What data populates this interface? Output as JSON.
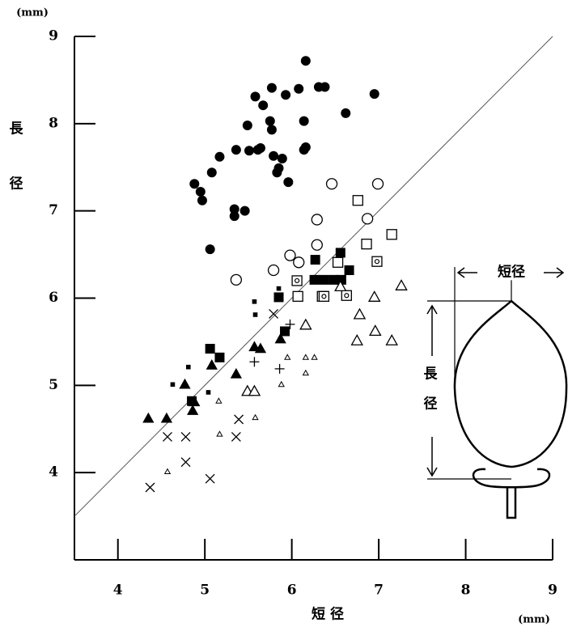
{
  "chart_data": {
    "type": "scatter",
    "y_unit": "(mm)",
    "x_unit": "(mm)",
    "ylabel": [
      "長",
      "径"
    ],
    "xlabel": "短 径",
    "xlim": [
      3.5,
      9
    ],
    "ylim": [
      3,
      9
    ],
    "xticks": [
      4,
      5,
      6,
      7,
      8,
      9
    ],
    "yticks": [
      4,
      5,
      6,
      7,
      8,
      9
    ],
    "identity_line": true,
    "inset": {
      "width_label": "短径",
      "length_label": [
        "長",
        "径"
      ]
    },
    "series": [
      {
        "marker": "filled-circle",
        "color": "#000000",
        "x": [
          4.88,
          4.95,
          4.97,
          5.08,
          5.17,
          5.36,
          5.51,
          5.61,
          5.49,
          5.58,
          5.67,
          5.77,
          5.64,
          5.75,
          5.77,
          5.85,
          5.79,
          5.83,
          5.89,
          5.96,
          5.93,
          6.08,
          6.16,
          6.14,
          6.14,
          6.16,
          6.38,
          6.31,
          6.95,
          6.62,
          5.34,
          5.34,
          5.46,
          5.06
        ],
        "y": [
          7.31,
          7.22,
          7.12,
          7.44,
          7.62,
          7.7,
          7.69,
          7.7,
          7.98,
          8.31,
          8.21,
          8.41,
          7.72,
          8.03,
          7.93,
          7.49,
          7.63,
          7.44,
          7.6,
          7.33,
          8.33,
          8.4,
          8.72,
          8.03,
          7.7,
          7.73,
          8.42,
          8.42,
          8.34,
          8.12,
          7.02,
          6.94,
          7.0,
          6.56
        ]
      },
      {
        "marker": "open-circle",
        "color": "#000000",
        "x": [
          5.36,
          5.79,
          5.98,
          6.08,
          6.29,
          6.29,
          6.46,
          6.87,
          6.99
        ],
        "y": [
          6.21,
          6.32,
          6.49,
          6.41,
          6.9,
          6.61,
          7.31,
          6.91,
          7.31
        ]
      },
      {
        "marker": "open-square",
        "color": "#000000",
        "x": [
          6.76,
          6.86,
          7.15,
          6.07,
          6.35,
          6.53
        ],
        "y": [
          7.12,
          6.62,
          6.73,
          6.02,
          6.02,
          6.41
        ]
      },
      {
        "marker": "dotted-square",
        "color": "#000000",
        "x": [
          6.98,
          6.63,
          6.37,
          6.06
        ],
        "y": [
          6.42,
          6.03,
          6.02,
          6.2
        ]
      },
      {
        "marker": "filled-square",
        "color": "#000000",
        "x": [
          6.27,
          6.56,
          6.66,
          6.26,
          6.37,
          6.48,
          6.57,
          5.85,
          5.92,
          5.06,
          5.17,
          4.85
        ],
        "y": [
          6.44,
          6.52,
          6.32,
          6.21,
          6.21,
          6.21,
          6.21,
          6.01,
          5.62,
          5.42,
          5.32,
          4.82
        ]
      },
      {
        "marker": "small-filled-square",
        "color": "#000000",
        "x": [
          4.81,
          4.63,
          5.04,
          5.57,
          5.58,
          5.85
        ],
        "y": [
          5.21,
          5.01,
          4.92,
          5.96,
          5.81,
          6.11
        ]
      },
      {
        "marker": "filled-triangle",
        "color": "#000000",
        "x": [
          4.35,
          4.56,
          4.77,
          4.86,
          5.08,
          5.36,
          5.57,
          5.64,
          5.87,
          4.88
        ],
        "y": [
          4.62,
          4.62,
          5.01,
          4.71,
          5.23,
          5.13,
          5.44,
          5.42,
          5.53,
          4.81
        ]
      },
      {
        "marker": "open-triangle",
        "color": "#000000",
        "x": [
          6.56,
          6.78,
          6.95,
          7.26,
          6.96,
          7.15,
          6.75,
          6.16,
          5.49,
          5.57
        ],
        "y": [
          6.13,
          5.81,
          6.01,
          6.14,
          5.62,
          5.51,
          5.51,
          5.69,
          4.93,
          4.93
        ]
      },
      {
        "marker": "small-open-triangle",
        "color": "#000000",
        "x": [
          5.17,
          4.57,
          5.58,
          5.16,
          6.16,
          6.16,
          6.26,
          5.88,
          5.95
        ],
        "y": [
          4.44,
          4.01,
          4.63,
          4.82,
          5.14,
          5.32,
          5.32,
          5.01,
          5.32
        ]
      },
      {
        "marker": "cross",
        "color": "#000000",
        "x": [
          4.37,
          4.57,
          4.78,
          4.78,
          5.06,
          5.36,
          5.39,
          5.79
        ],
        "y": [
          3.83,
          4.41,
          4.41,
          4.12,
          3.93,
          4.41,
          4.61,
          5.82
        ]
      },
      {
        "marker": "plus",
        "color": "#000000",
        "x": [
          5.86,
          5.98,
          5.57
        ],
        "y": [
          5.19,
          5.7,
          5.27
        ]
      }
    ]
  }
}
